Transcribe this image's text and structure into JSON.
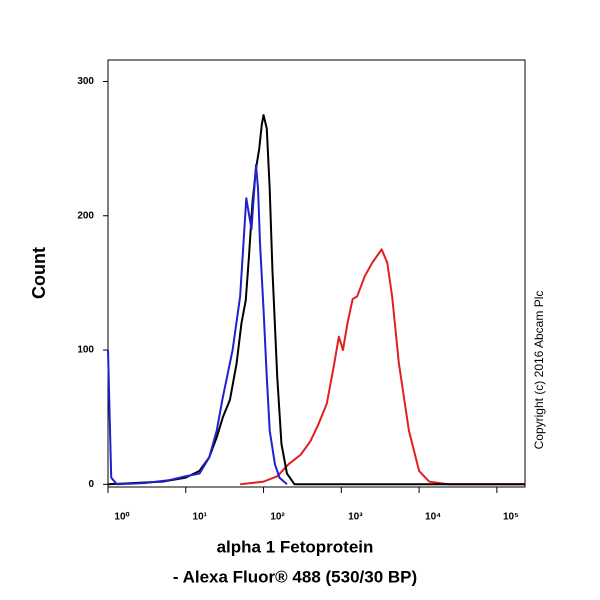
{
  "chart_data": {
    "type": "line",
    "x_label": [
      "alpha 1 Fetoprotein",
      "- Alexa Fluor® 488 (530/30 BP)"
    ],
    "y_label": "Count",
    "annotation": "Copyright (c) 2016 Abcam Plc",
    "log_x": true,
    "xlim": [
      1,
      230000
    ],
    "xticks": [
      {
        "value": 1,
        "label": "10⁰"
      },
      {
        "value": 10,
        "label": "10¹"
      },
      {
        "value": 100,
        "label": "10²"
      },
      {
        "value": 1000,
        "label": "10³"
      },
      {
        "value": 10000,
        "label": "10⁴"
      },
      {
        "value": 100000,
        "label": "10⁵"
      }
    ],
    "ylim": [
      -2,
      316
    ],
    "yticks": [
      0,
      100,
      200,
      300
    ],
    "series": [
      {
        "color": "#e02020",
        "x": [
          50,
          100,
          150,
          210,
          300,
          400,
          510,
          650,
          800,
          930,
          1050,
          1200,
          1400,
          1600,
          2000,
          2500,
          3300,
          3900,
          4500,
          5500,
          7400,
          10000,
          13500,
          24000,
          230000
        ],
        "values": [
          0,
          2,
          6,
          15,
          22,
          32,
          45,
          60,
          88,
          110,
          100,
          120,
          138,
          140,
          155,
          165,
          175,
          165,
          140,
          90,
          40,
          10,
          2,
          0,
          0
        ]
      },
      {
        "color": "#000000",
        "x": [
          1,
          5,
          10,
          15,
          20,
          25,
          30,
          37,
          45,
          52,
          59,
          65,
          72,
          80,
          88,
          95,
          100,
          110,
          120,
          130,
          150,
          170,
          200,
          250,
          230000
        ],
        "values": [
          0,
          2,
          5,
          10,
          20,
          35,
          50,
          63,
          90,
          120,
          137,
          170,
          210,
          235,
          250,
          268,
          275,
          265,
          220,
          160,
          80,
          30,
          8,
          0,
          0
        ]
      },
      {
        "color": "#2020d0",
        "x": [
          1,
          1.1,
          1.3,
          3,
          6,
          10,
          15,
          20,
          25,
          30,
          40,
          50,
          60,
          70,
          75,
          80,
          85,
          90,
          100,
          110,
          120,
          140,
          160,
          200
        ],
        "values": [
          100,
          5,
          0,
          1,
          3,
          6,
          8,
          20,
          40,
          65,
          100,
          140,
          213,
          190,
          215,
          238,
          220,
          180,
          130,
          80,
          40,
          15,
          5,
          0
        ]
      }
    ]
  }
}
